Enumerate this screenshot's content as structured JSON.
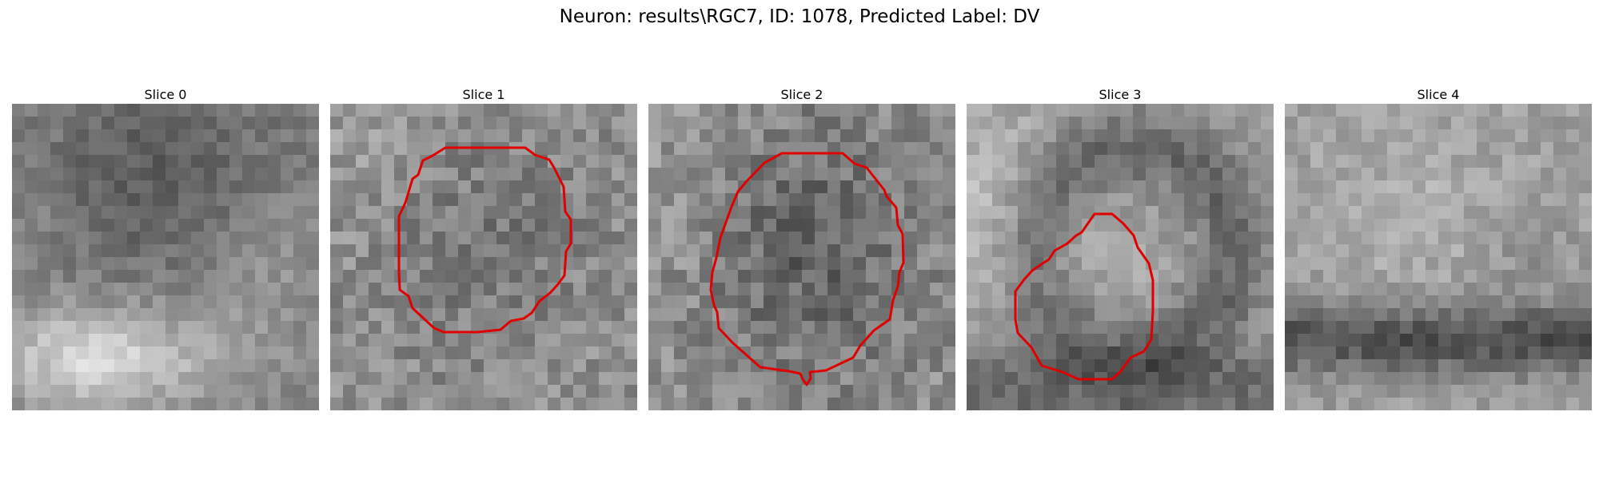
{
  "figure": {
    "title": "Neuron: results\\RGC7, ID: 1078, Predicted Label: DV"
  },
  "panels": [
    {
      "title": "Slice 0",
      "has_contour": false
    },
    {
      "title": "Slice 1",
      "has_contour": true
    },
    {
      "title": "Slice 2",
      "has_contour": true
    },
    {
      "title": "Slice 3",
      "has_contour": true
    },
    {
      "title": "Slice 4",
      "has_contour": false
    }
  ],
  "colors": {
    "contour": "#e00000",
    "background": "#ffffff"
  }
}
